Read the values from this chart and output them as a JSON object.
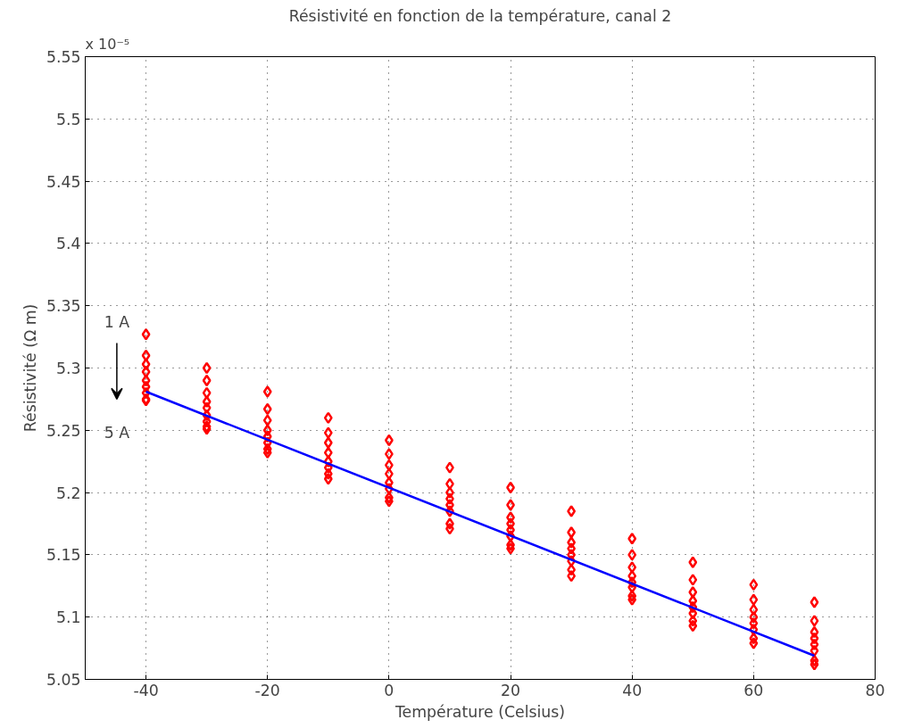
{
  "chart_data": {
    "type": "scatter",
    "title": "Résistivité en fonction de la température, canal 2",
    "xlabel": "Température (Celsius)",
    "ylabel": "Résistivité (Ω m)",
    "annotations": [
      "x 10⁻⁵",
      "1 A",
      "5 A"
    ],
    "xlim": [
      -50,
      80
    ],
    "xticks": [
      -40,
      -20,
      0,
      20,
      40,
      60,
      80
    ],
    "ylim": [
      5.05,
      5.55
    ],
    "yticks": [
      5.05,
      5.1,
      5.15,
      5.2,
      5.25,
      5.3,
      5.35,
      5.4,
      5.45,
      5.5,
      5.55
    ],
    "grid": true,
    "series": [
      {
        "marker": "diamond",
        "color": "#ff0000",
        "x": [
          -40,
          -40,
          -40,
          -40,
          -40,
          -40,
          -40,
          -40,
          -40,
          -30,
          -30,
          -30,
          -30,
          -30,
          -30,
          -30,
          -30,
          -30,
          -20,
          -20,
          -20,
          -20,
          -20,
          -20,
          -20,
          -20,
          -10,
          -10,
          -10,
          -10,
          -10,
          -10,
          -10,
          -10,
          0,
          0,
          0,
          0,
          0,
          0,
          0,
          0,
          10,
          10,
          10,
          10,
          10,
          10,
          10,
          10,
          20,
          20,
          20,
          20,
          20,
          20,
          20,
          20,
          30,
          30,
          30,
          30,
          30,
          30,
          30,
          30,
          40,
          40,
          40,
          40,
          40,
          40,
          40,
          40,
          50,
          50,
          50,
          50,
          50,
          50,
          50,
          50,
          60,
          60,
          60,
          60,
          60,
          60,
          60,
          60,
          70,
          70,
          70,
          70,
          70,
          70,
          70,
          70
        ],
        "values": [
          5.327,
          5.31,
          5.303,
          5.297,
          5.29,
          5.285,
          5.28,
          5.275,
          5.274,
          5.3,
          5.29,
          5.28,
          5.273,
          5.268,
          5.262,
          5.257,
          5.253,
          5.251,
          5.281,
          5.267,
          5.258,
          5.25,
          5.245,
          5.24,
          5.235,
          5.232,
          5.26,
          5.248,
          5.24,
          5.232,
          5.225,
          5.22,
          5.215,
          5.211,
          5.242,
          5.231,
          5.222,
          5.215,
          5.208,
          5.203,
          5.196,
          5.193,
          5.22,
          5.207,
          5.2,
          5.195,
          5.19,
          5.185,
          5.175,
          5.171,
          5.204,
          5.19,
          5.18,
          5.175,
          5.17,
          5.165,
          5.158,
          5.155,
          5.185,
          5.168,
          5.16,
          5.155,
          5.15,
          5.145,
          5.138,
          5.133,
          5.163,
          5.15,
          5.14,
          5.133,
          5.128,
          5.124,
          5.117,
          5.114,
          5.144,
          5.13,
          5.12,
          5.113,
          5.108,
          5.103,
          5.097,
          5.093,
          5.126,
          5.114,
          5.106,
          5.1,
          5.095,
          5.09,
          5.083,
          5.079,
          5.112,
          5.097,
          5.088,
          5.083,
          5.078,
          5.073,
          5.065,
          5.062
        ]
      },
      {
        "type": "line",
        "color": "#0000ff",
        "x": [
          -40,
          70
        ],
        "values": [
          5.281,
          5.069
        ]
      }
    ]
  }
}
